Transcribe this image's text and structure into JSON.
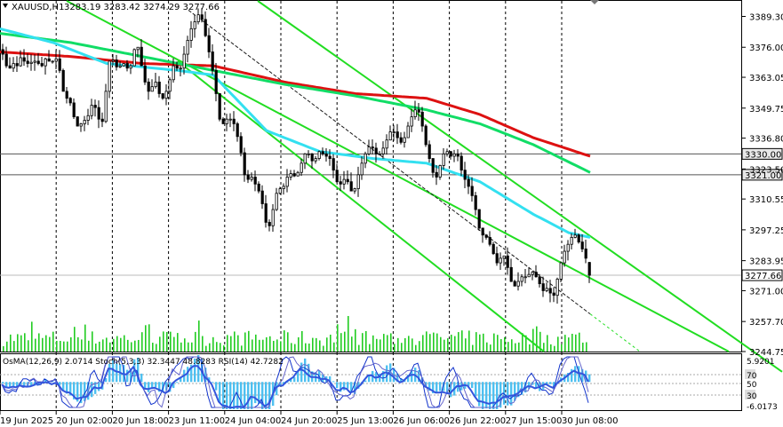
{
  "header": {
    "symbol": "XAUUSD,H1",
    "ohlc": "3283.19 3283.42 3274.29 3277.66"
  },
  "indicator_label": "OsMA(12,26,9) 2.0714  Stoch(5,3,3) 32.3447 48.8283  RSI(14) 42.7282",
  "colors": {
    "bull": "#3a3a3a",
    "bear": "#3a3a3a",
    "volume": "#22cc22",
    "ma_red": "#dd1111",
    "ma_green": "#11dd66",
    "ma_cyan": "#33e0f0",
    "channel": "#22dd22",
    "trendline": "#1a1a1a",
    "osma": "#4ec0f0",
    "stoch_main": "#1133cc",
    "stoch_signal": "#6666cc",
    "rsi": "#3355dd"
  },
  "chart_data": {
    "type": "candlestick",
    "symbol": "XAUUSD",
    "timeframe": "H1",
    "last": {
      "open": 3283.19,
      "high": 3283.42,
      "low": 3274.29,
      "close": 3277.66
    },
    "price_axis": {
      "min": 3244.75,
      "max": 3396.0,
      "ticks": [
        3389.3,
        3376.0,
        3363.05,
        3349.75,
        3336.8,
        3323.5,
        3310.55,
        3297.25,
        3283.95,
        3271.0,
        3257.7,
        3244.75
      ]
    },
    "time_axis": {
      "ticks": [
        "19 Jun 2025",
        "20 Jun 02:00",
        "20 Jun 18:00",
        "23 Jun 11:00",
        "24 Jun 04:00",
        "24 Jun 20:00",
        "25 Jun 13:00",
        "26 Jun 06:00",
        "26 Jun 22:00",
        "27 Jun 15:00",
        "30 Jun 08:00"
      ]
    },
    "levels": [
      {
        "value": 3330.0,
        "label": "3330.00"
      },
      {
        "value": 3321.0,
        "label": "3321.00"
      },
      {
        "value": 3277.66,
        "label": "3277.66"
      }
    ],
    "close_path": [
      [
        0,
        3375
      ],
      [
        3,
        3372
      ],
      [
        6,
        3368
      ],
      [
        8,
        3362
      ],
      [
        12,
        3372
      ],
      [
        16,
        3366
      ],
      [
        20,
        3370
      ],
      [
        24,
        3373
      ],
      [
        28,
        3367
      ],
      [
        32,
        3371
      ],
      [
        36,
        3368
      ],
      [
        40,
        3372
      ],
      [
        44,
        3366
      ],
      [
        48,
        3370
      ],
      [
        52,
        3372
      ],
      [
        56,
        3368
      ],
      [
        60,
        3372
      ],
      [
        64,
        3370
      ],
      [
        68,
        3362
      ],
      [
        72,
        3352
      ],
      [
        76,
        3356
      ],
      [
        80,
        3348
      ],
      [
        84,
        3344
      ],
      [
        88,
        3340
      ],
      [
        92,
        3346
      ],
      [
        96,
        3343
      ],
      [
        100,
        3350
      ],
      [
        104,
        3352
      ],
      [
        108,
        3348
      ],
      [
        112,
        3342
      ],
      [
        116,
        3346
      ],
      [
        120,
        3368
      ],
      [
        124,
        3372
      ],
      [
        128,
        3369
      ],
      [
        132,
        3366
      ],
      [
        136,
        3370
      ],
      [
        140,
        3368
      ],
      [
        144,
        3366
      ],
      [
        148,
        3370
      ],
      [
        152,
        3380
      ],
      [
        156,
        3372
      ],
      [
        160,
        3364
      ],
      [
        164,
        3358
      ],
      [
        168,
        3356
      ],
      [
        172,
        3362
      ],
      [
        176,
        3360
      ],
      [
        180,
        3352
      ],
      [
        184,
        3356
      ],
      [
        188,
        3358
      ],
      [
        192,
        3366
      ],
      [
        196,
        3370
      ],
      [
        200,
        3364
      ],
      [
        204,
        3370
      ],
      [
        208,
        3376
      ],
      [
        212,
        3382
      ],
      [
        216,
        3386
      ],
      [
        220,
        3388
      ],
      [
        224,
        3392
      ],
      [
        228,
        3384
      ],
      [
        232,
        3378
      ],
      [
        236,
        3370
      ],
      [
        240,
        3362
      ],
      [
        244,
        3350
      ],
      [
        248,
        3340
      ],
      [
        252,
        3346
      ],
      [
        256,
        3344
      ],
      [
        260,
        3346
      ],
      [
        264,
        3340
      ],
      [
        268,
        3335
      ],
      [
        272,
        3326
      ],
      [
        276,
        3316
      ],
      [
        280,
        3322
      ],
      [
        284,
        3318
      ],
      [
        288,
        3316
      ],
      [
        292,
        3312
      ],
      [
        296,
        3305
      ],
      [
        300,
        3296
      ],
      [
        304,
        3302
      ],
      [
        308,
        3310
      ],
      [
        312,
        3316
      ],
      [
        316,
        3314
      ],
      [
        320,
        3318
      ],
      [
        324,
        3322
      ],
      [
        328,
        3321
      ],
      [
        332,
        3320
      ],
      [
        336,
        3324
      ],
      [
        340,
        3328
      ],
      [
        344,
        3332
      ],
      [
        348,
        3328
      ],
      [
        352,
        3326
      ],
      [
        356,
        3330
      ],
      [
        360,
        3332
      ],
      [
        364,
        3328
      ],
      [
        368,
        3330
      ],
      [
        372,
        3326
      ],
      [
        376,
        3320
      ],
      [
        380,
        3316
      ],
      [
        384,
        3318
      ],
      [
        388,
        3320
      ],
      [
        392,
        3316
      ],
      [
        396,
        3312
      ],
      [
        400,
        3318
      ],
      [
        404,
        3324
      ],
      [
        408,
        3328
      ],
      [
        412,
        3332
      ],
      [
        416,
        3334
      ],
      [
        420,
        3331
      ],
      [
        424,
        3329
      ],
      [
        428,
        3331
      ],
      [
        432,
        3334
      ],
      [
        436,
        3338
      ],
      [
        440,
        3341
      ],
      [
        444,
        3338
      ],
      [
        448,
        3336
      ],
      [
        452,
        3334
      ],
      [
        456,
        3340
      ],
      [
        460,
        3344
      ],
      [
        464,
        3348
      ],
      [
        468,
        3350
      ],
      [
        472,
        3346
      ],
      [
        476,
        3338
      ],
      [
        480,
        3330
      ],
      [
        484,
        3326
      ],
      [
        488,
        3318
      ],
      [
        492,
        3322
      ],
      [
        496,
        3328
      ],
      [
        500,
        3332
      ],
      [
        504,
        3330
      ],
      [
        508,
        3328
      ],
      [
        512,
        3332
      ],
      [
        516,
        3326
      ],
      [
        520,
        3320
      ],
      [
        524,
        3318
      ],
      [
        528,
        3314
      ],
      [
        532,
        3310
      ],
      [
        536,
        3302
      ],
      [
        540,
        3294
      ],
      [
        544,
        3296
      ],
      [
        548,
        3292
      ],
      [
        552,
        3290
      ],
      [
        556,
        3284
      ],
      [
        560,
        3282
      ],
      [
        564,
        3288
      ],
      [
        568,
        3284
      ],
      [
        572,
        3278
      ],
      [
        576,
        3272
      ],
      [
        580,
        3274
      ],
      [
        584,
        3276
      ],
      [
        588,
        3278
      ],
      [
        592,
        3276
      ],
      [
        596,
        3280
      ],
      [
        600,
        3278
      ],
      [
        604,
        3276
      ],
      [
        608,
        3272
      ],
      [
        612,
        3270
      ],
      [
        616,
        3274
      ],
      [
        620,
        3266
      ],
      [
        624,
        3272
      ],
      [
        628,
        3280
      ],
      [
        632,
        3286
      ],
      [
        636,
        3290
      ],
      [
        640,
        3292
      ],
      [
        644,
        3296
      ],
      [
        648,
        3294
      ],
      [
        652,
        3290
      ],
      [
        656,
        3288
      ],
      [
        660,
        3282
      ],
      [
        663,
        3277.66
      ]
    ],
    "moving_averages": [
      {
        "color_key": "ma_red",
        "points": [
          [
            0,
            3374
          ],
          [
            80,
            3372
          ],
          [
            160,
            3369
          ],
          [
            240,
            3368
          ],
          [
            320,
            3361
          ],
          [
            400,
            3356
          ],
          [
            480,
            3354
          ],
          [
            540,
            3347
          ],
          [
            600,
            3337
          ],
          [
            664,
            3329
          ]
        ]
      },
      {
        "color_key": "ma_green",
        "points": [
          [
            0,
            3382
          ],
          [
            80,
            3378
          ],
          [
            160,
            3372
          ],
          [
            240,
            3366
          ],
          [
            320,
            3360
          ],
          [
            400,
            3355
          ],
          [
            480,
            3349
          ],
          [
            540,
            3343
          ],
          [
            600,
            3334
          ],
          [
            664,
            3322
          ]
        ]
      },
      {
        "color_key": "ma_cyan",
        "points": [
          [
            0,
            3384
          ],
          [
            60,
            3378
          ],
          [
            120,
            3369
          ],
          [
            200,
            3366
          ],
          [
            240,
            3364
          ],
          [
            300,
            3340
          ],
          [
            360,
            3331
          ],
          [
            420,
            3328
          ],
          [
            480,
            3326
          ],
          [
            540,
            3318
          ],
          [
            600,
            3304
          ],
          [
            640,
            3296
          ],
          [
            664,
            3294
          ]
        ]
      }
    ],
    "channels": [
      {
        "from": [
          75,
          3396
        ],
        "to": [
          820,
          3244.75
        ]
      },
      {
        "from": [
          290,
          3396
        ],
        "to": [
          880,
          3236
        ]
      },
      {
        "from": [
          200,
          3370
        ],
        "to": [
          612,
          3244.75
        ]
      }
    ],
    "trendline": {
      "from": [
        212,
        3392
      ],
      "to": [
        720,
        3244.75
      ],
      "solid_until_x": 664
    },
    "oscillator": {
      "osma_min": -6.0173,
      "osma_max": 5.9201,
      "levels": [
        "5.9201",
        "70",
        "50",
        "30",
        "-6.0173"
      ]
    },
    "grid": false
  }
}
